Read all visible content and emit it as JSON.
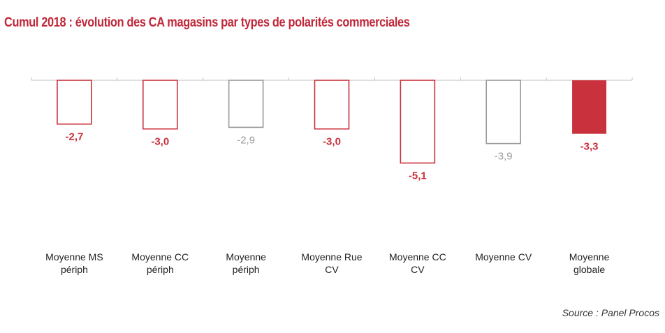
{
  "header": {
    "title": "Cumul 2018 : évolution des CA magasins par types de polarités commerciales"
  },
  "footer": {
    "source": "Source : Panel Procos"
  },
  "colors": {
    "accent_red": "#c9313c",
    "neutral_gray": "#9a9a9a",
    "axis_gray": "#bfbfbf",
    "category_text": "#222222"
  },
  "chart_data": {
    "type": "bar",
    "title": "Cumul 2018 : évolution des CA magasins par types de polarités commerciales",
    "xlabel": "",
    "ylabel": "",
    "ylim": [
      -5.1,
      0
    ],
    "grid": false,
    "legend": "none",
    "categories": [
      [
        "Moyenne MS",
        "périph"
      ],
      [
        "Moyenne CC",
        "périph"
      ],
      [
        "Moyenne",
        "périph"
      ],
      [
        "Moyenne Rue",
        "CV"
      ],
      [
        "Moyenne CC",
        "CV"
      ],
      [
        "Moyenne CV"
      ],
      [
        "Moyenne",
        "globale"
      ]
    ],
    "values": [
      -2.7,
      -3.0,
      -2.9,
      -3.0,
      -5.1,
      -3.9,
      -3.3
    ],
    "data_labels": [
      "-2,7",
      "-3,0",
      "-2,9",
      "-3,0",
      "-5,1",
      "-3,9",
      "-3,3"
    ],
    "bar_styles": [
      "outline-red",
      "outline-red",
      "outline-gray",
      "outline-red",
      "outline-red",
      "outline-gray",
      "filled-red"
    ]
  }
}
